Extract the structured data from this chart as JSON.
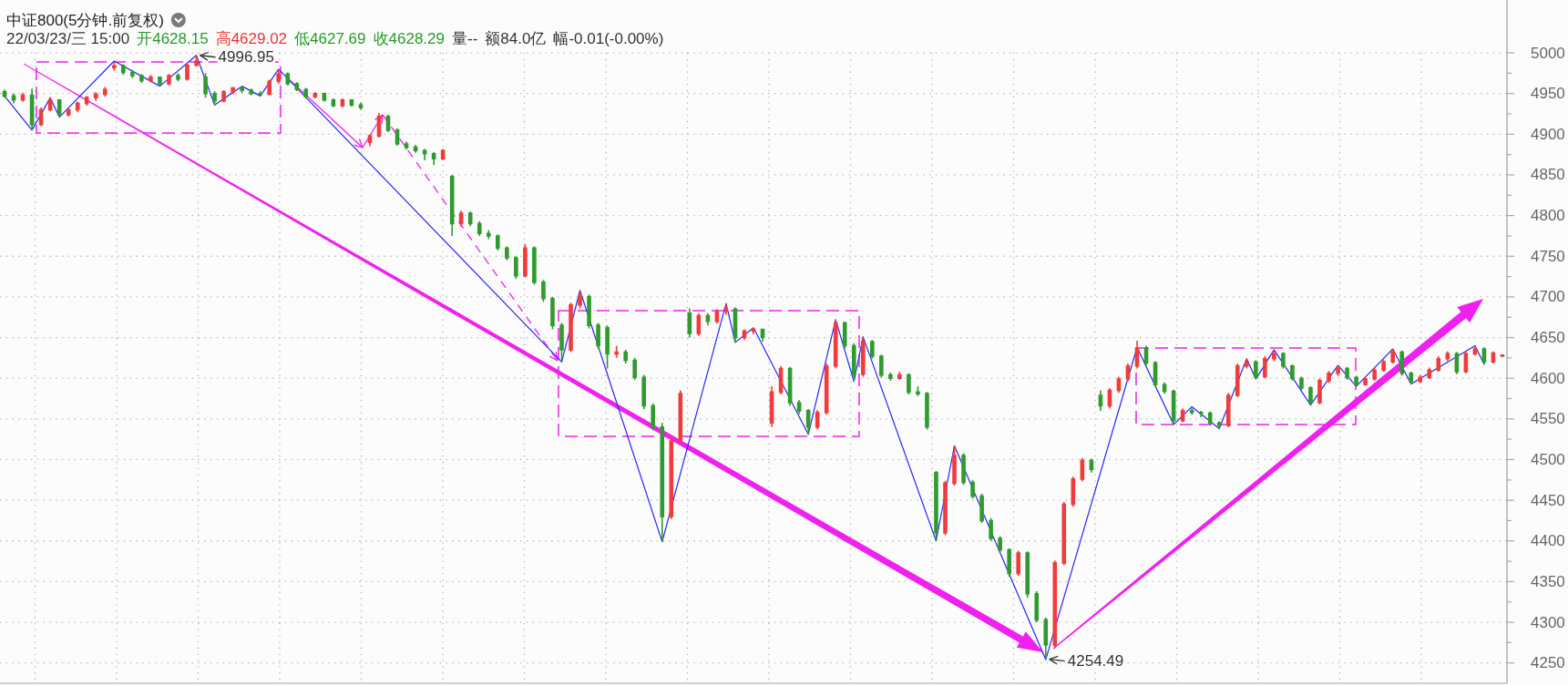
{
  "chart_data": {
    "type": "candlestick",
    "title": "中证800(5分钟.前复权)",
    "annotations": [
      "22/03/23/三 15:00",
      "开4628.15",
      "高4629.02",
      "低4627.69",
      "收4628.29",
      "量--",
      "额84.0亿",
      "幅-0.01(-0.00%)",
      "4996.95",
      "4254.49"
    ],
    "categories": [
      null,
      null,
      null,
      null,
      null,
      null,
      null,
      null,
      null,
      null,
      null,
      null,
      null,
      null,
      null,
      null,
      null,
      null,
      null,
      null,
      null,
      null,
      null,
      null,
      null,
      null,
      null,
      null,
      null,
      null,
      null,
      null,
      null,
      null,
      null,
      null,
      null,
      null,
      null,
      null,
      null,
      null,
      null,
      null,
      null,
      null,
      null,
      null,
      null,
      null,
      null,
      null,
      null,
      null,
      null,
      null,
      null,
      null,
      null,
      null,
      null,
      null,
      null,
      null,
      null,
      null,
      null,
      null,
      null,
      null,
      null,
      null,
      null,
      null,
      null,
      null,
      null,
      null,
      null,
      null,
      null,
      null,
      null,
      null,
      null,
      null,
      null,
      null,
      null,
      null,
      null,
      null,
      null,
      null,
      null,
      null,
      null,
      null,
      null,
      null,
      null,
      null,
      null,
      null,
      null,
      null,
      null,
      null,
      null,
      null,
      null,
      null,
      null,
      null,
      null,
      null,
      null,
      null,
      null,
      null,
      null,
      null,
      null,
      null,
      null,
      null,
      null,
      null,
      null,
      null,
      null,
      null,
      null,
      null,
      null,
      null,
      null,
      null,
      null,
      null,
      null,
      null,
      null,
      null,
      null,
      null,
      null,
      null,
      null,
      null,
      null,
      null,
      null,
      null,
      null,
      null,
      null,
      null,
      null,
      null,
      null,
      null,
      null,
      null,
      null
    ],
    "ohlc": [
      [
        4952,
        4955,
        4945,
        4947
      ],
      [
        4947,
        4950,
        4938,
        4942
      ],
      [
        4942,
        4951,
        4940,
        4948
      ],
      [
        4948,
        4956,
        4905,
        4912
      ],
      [
        4912,
        4933,
        4910,
        4930
      ],
      [
        4930,
        4945,
        4928,
        4942
      ],
      [
        4942,
        4943,
        4921,
        4924
      ],
      [
        4924,
        4932,
        4922,
        4930
      ],
      [
        4930,
        4940,
        4927,
        4938
      ],
      [
        4938,
        4947,
        4935,
        4945
      ],
      [
        4945,
        4952,
        4941,
        4949
      ],
      [
        4949,
        4958,
        4946,
        4955
      ],
      [
        4982,
        4990,
        4978,
        4984
      ],
      [
        4984,
        4986,
        4973,
        4976
      ],
      [
        4976,
        4979,
        4969,
        4972
      ],
      [
        4972,
        4974,
        4963,
        4966
      ],
      [
        4966,
        4973,
        4964,
        4970
      ],
      [
        4970,
        4971,
        4959,
        4962
      ],
      [
        4962,
        4974,
        4960,
        4972
      ],
      [
        4972,
        4975,
        4965,
        4968
      ],
      [
        4968,
        4987,
        4966,
        4985
      ],
      [
        4985,
        4996.95,
        4983,
        4990
      ],
      [
        4970,
        4975,
        4945,
        4950
      ],
      [
        4950,
        4953,
        4936,
        4941
      ],
      [
        4941,
        4954,
        4939,
        4952
      ],
      [
        4952,
        4958,
        4949,
        4957
      ],
      [
        4957,
        4959,
        4951,
        4954
      ],
      [
        4954,
        4956,
        4948,
        4950
      ],
      [
        4950,
        4953,
        4947,
        4949
      ],
      [
        4949,
        4967,
        4948,
        4965
      ],
      [
        4965,
        4980,
        4962,
        4974
      ],
      [
        4974,
        4976,
        4960,
        4962
      ],
      [
        4962,
        4964,
        4953,
        4955
      ],
      [
        4955,
        4957,
        4944,
        4946
      ],
      [
        4946,
        4952,
        4944,
        4950
      ],
      [
        4950,
        4951,
        4940,
        4942
      ],
      [
        4942,
        4944,
        4933,
        4935
      ],
      [
        4935,
        4944,
        4933,
        4942
      ],
      [
        4942,
        4943,
        4934,
        4936
      ],
      [
        4936,
        4939,
        4930,
        4933
      ],
      [
        4890,
        4900,
        4885,
        4898
      ],
      [
        4898,
        4926,
        4896,
        4922
      ],
      [
        4922,
        4924,
        4903,
        4905
      ],
      [
        4905,
        4907,
        4886,
        4888
      ],
      [
        4888,
        4891,
        4881,
        4884
      ],
      [
        4884,
        4887,
        4877,
        4880
      ],
      [
        4880,
        4882,
        4868,
        4876
      ],
      [
        4876,
        4878,
        4862,
        4870
      ],
      [
        4870,
        4882,
        4868,
        4880
      ],
      [
        4848,
        4850,
        4775,
        4790
      ],
      [
        4790,
        4806,
        4786,
        4803
      ],
      [
        4803,
        4805,
        4787,
        4790
      ],
      [
        4790,
        4793,
        4775,
        4778
      ],
      [
        4778,
        4782,
        4771,
        4775
      ],
      [
        4775,
        4777,
        4757,
        4760
      ],
      [
        4760,
        4762,
        4745,
        4748
      ],
      [
        4748,
        4750,
        4722,
        4726
      ],
      [
        4726,
        4765,
        4724,
        4760
      ],
      [
        4760,
        4762,
        4715,
        4718
      ],
      [
        4718,
        4721,
        4694,
        4698
      ],
      [
        4698,
        4700,
        4660,
        4665
      ],
      [
        4665,
        4668,
        4620,
        4635
      ],
      [
        4635,
        4693,
        4632,
        4690
      ],
      [
        4690,
        4708,
        4686,
        4700
      ],
      [
        4700,
        4703,
        4661,
        4665
      ],
      [
        4665,
        4668,
        4636,
        4640
      ],
      [
        4662,
        4665,
        4612,
        4630
      ],
      [
        4630,
        4640,
        4625,
        4632
      ],
      [
        4632,
        4635,
        4618,
        4622
      ],
      [
        4622,
        4625,
        4598,
        4601
      ],
      [
        4601,
        4604,
        4562,
        4566
      ],
      [
        4566,
        4569,
        4536,
        4540
      ],
      [
        4540,
        4545,
        4399,
        4430
      ],
      [
        4430,
        4528,
        4427,
        4523
      ],
      [
        4523,
        4585,
        4520,
        4581
      ],
      [
        4680,
        4686,
        4650,
        4655
      ],
      [
        4655,
        4680,
        4652,
        4677
      ],
      [
        4677,
        4680,
        4665,
        4670
      ],
      [
        4670,
        4685,
        4667,
        4682
      ],
      [
        4682,
        4692,
        4678,
        4685
      ],
      [
        4685,
        4687,
        4644,
        4650
      ],
      [
        4650,
        4660,
        4647,
        4658
      ],
      [
        4658,
        4662,
        4654,
        4660
      ],
      [
        4660,
        4661,
        4645,
        4650
      ],
      [
        4545,
        4590,
        4540,
        4583
      ],
      [
        4583,
        4615,
        4580,
        4612
      ],
      [
        4612,
        4614,
        4566,
        4570
      ],
      [
        4570,
        4573,
        4556,
        4560
      ],
      [
        4560,
        4562,
        4531,
        4540
      ],
      [
        4540,
        4561,
        4537,
        4558
      ],
      [
        4558,
        4618,
        4555,
        4615
      ],
      [
        4615,
        4672,
        4612,
        4668
      ],
      [
        4668,
        4670,
        4637,
        4640
      ],
      [
        4640,
        4643,
        4596,
        4605
      ],
      [
        4605,
        4651,
        4602,
        4645
      ],
      [
        4645,
        4647,
        4624,
        4627
      ],
      [
        4627,
        4629,
        4601,
        4604
      ],
      [
        4604,
        4607,
        4597,
        4600
      ],
      [
        4600,
        4608,
        4598,
        4604
      ],
      [
        4604,
        4606,
        4580,
        4583
      ],
      [
        4583,
        4590,
        4578,
        4581
      ],
      [
        4581,
        4583,
        4537,
        4540
      ],
      [
        4484,
        4486,
        4400,
        4410
      ],
      [
        4410,
        4474,
        4407,
        4471
      ],
      [
        4471,
        4517,
        4468,
        4505
      ],
      [
        4505,
        4508,
        4469,
        4472
      ],
      [
        4472,
        4475,
        4452,
        4455
      ],
      [
        4455,
        4458,
        4422,
        4425
      ],
      [
        4425,
        4428,
        4400,
        4403
      ],
      [
        4403,
        4406,
        4386,
        4389
      ],
      [
        4389,
        4391,
        4356,
        4360
      ],
      [
        4360,
        4388,
        4357,
        4385
      ],
      [
        4385,
        4387,
        4330,
        4335
      ],
      [
        4335,
        4338,
        4300,
        4303
      ],
      [
        4303,
        4306,
        4254.49,
        4272
      ],
      [
        4272,
        4376,
        4268,
        4373
      ],
      [
        4373,
        4448,
        4370,
        4445
      ],
      [
        4445,
        4479,
        4442,
        4476
      ],
      [
        4476,
        4502,
        4473,
        4499
      ],
      [
        4499,
        4501,
        4484,
        4488
      ],
      [
        4579,
        4585,
        4560,
        4566
      ],
      [
        4566,
        4588,
        4563,
        4585
      ],
      [
        4585,
        4602,
        4582,
        4599
      ],
      [
        4599,
        4618,
        4596,
        4615
      ],
      [
        4615,
        4646,
        4612,
        4637
      ],
      [
        4637,
        4640,
        4616,
        4619
      ],
      [
        4619,
        4621,
        4589,
        4592
      ],
      [
        4592,
        4595,
        4581,
        4584
      ],
      [
        4584,
        4586,
        4543,
        4548
      ],
      [
        4548,
        4563,
        4546,
        4560
      ],
      [
        4560,
        4565,
        4555,
        4558
      ],
      [
        4558,
        4560,
        4552,
        4557
      ],
      [
        4557,
        4559,
        4542,
        4545
      ],
      [
        4545,
        4547,
        4538,
        4542
      ],
      [
        4542,
        4582,
        4540,
        4579
      ],
      [
        4579,
        4618,
        4577,
        4615
      ],
      [
        4615,
        4624,
        4612,
        4620
      ],
      [
        4620,
        4622,
        4599,
        4602
      ],
      [
        4602,
        4627,
        4600,
        4624
      ],
      [
        4624,
        4635,
        4621,
        4630
      ],
      [
        4630,
        4632,
        4612,
        4615
      ],
      [
        4615,
        4617,
        4597,
        4600
      ],
      [
        4600,
        4602,
        4585,
        4588
      ],
      [
        4588,
        4590,
        4567,
        4570
      ],
      [
        4570,
        4600,
        4568,
        4597
      ],
      [
        4597,
        4609,
        4594,
        4606
      ],
      [
        4606,
        4616,
        4603,
        4612
      ],
      [
        4612,
        4614,
        4598,
        4601
      ],
      [
        4601,
        4603,
        4590,
        4592
      ],
      [
        4592,
        4602,
        4591,
        4599
      ],
      [
        4599,
        4613,
        4597,
        4610
      ],
      [
        4610,
        4623,
        4608,
        4620
      ],
      [
        4620,
        4636,
        4618,
        4632
      ],
      [
        4632,
        4634,
        4603,
        4606
      ],
      [
        4606,
        4608,
        4593,
        4596
      ],
      [
        4596,
        4604,
        4594,
        4601
      ],
      [
        4601,
        4613,
        4599,
        4610
      ],
      [
        4610,
        4627,
        4608,
        4624
      ],
      [
        4624,
        4633,
        4621,
        4630
      ],
      [
        4630,
        4632,
        4605,
        4608
      ],
      [
        4608,
        4633,
        4606,
        4630
      ],
      [
        4630,
        4640,
        4628,
        4636
      ],
      [
        4636,
        4638,
        4617,
        4620
      ],
      [
        4620,
        4633,
        4618,
        4631
      ],
      [
        4628.15,
        4629.02,
        4627.69,
        4628.29
      ]
    ],
    "series": [
      {
        "type": "line",
        "color": "#2626ff",
        "values": [
          4947,
          null,
          null,
          4905,
          null,
          4945,
          4921,
          null,
          null,
          null,
          null,
          null,
          4990,
          null,
          null,
          null,
          null,
          4959,
          null,
          null,
          null,
          4997,
          null,
          4936,
          null,
          null,
          4959,
          null,
          4947,
          null,
          4980,
          null,
          null,
          null,
          null,
          null,
          null,
          null,
          null,
          null,
          null,
          null,
          null,
          null,
          null,
          null,
          null,
          null,
          null,
          null,
          null,
          null,
          null,
          null,
          null,
          null,
          null,
          null,
          null,
          null,
          null,
          4620,
          null,
          4708,
          null,
          null,
          null,
          null,
          null,
          null,
          null,
          null,
          4399,
          null,
          null,
          null,
          null,
          null,
          null,
          4692,
          4644,
          null,
          4662,
          null,
          null,
          null,
          null,
          null,
          4531,
          null,
          null,
          4672,
          null,
          4596,
          4651,
          null,
          null,
          null,
          null,
          null,
          null,
          null,
          4400,
          null,
          4517,
          null,
          null,
          null,
          null,
          null,
          null,
          null,
          null,
          null,
          4254,
          null,
          null,
          null,
          null,
          null,
          null,
          null,
          null,
          null,
          4638,
          null,
          null,
          null,
          4543,
          null,
          4565,
          null,
          null,
          4538,
          null,
          null,
          4624,
          4599,
          null,
          4635,
          null,
          null,
          null,
          4567,
          null,
          null,
          4616,
          null,
          4590,
          null,
          null,
          null,
          4636,
          null,
          4593,
          null,
          null,
          null,
          null,
          null,
          null,
          4640,
          4617,
          null,
          null
        ]
      }
    ],
    "ylim": [
      4225,
      5065
    ],
    "yticks": [
      4250,
      {
        "value": 4275,
        "label": null
      },
      4300,
      {
        "value": 4325,
        "label": null
      },
      4350,
      {
        "value": 4375,
        "label": null
      },
      4400,
      {
        "value": 4425,
        "label": null
      },
      4450,
      {
        "value": 4475,
        "label": null
      },
      4500,
      {
        "value": 4525,
        "label": null
      },
      4550,
      {
        "value": 4575,
        "label": null
      },
      4600,
      {
        "value": 4625,
        "label": null
      },
      4650,
      {
        "value": 4675,
        "label": null
      },
      4700,
      {
        "value": 4725,
        "label": null
      },
      4750,
      {
        "value": 4775,
        "label": null
      },
      4800,
      {
        "value": 4825,
        "label": null
      },
      4850,
      {
        "value": 4875,
        "label": null
      },
      4900,
      {
        "value": 4925,
        "label": null
      },
      4950,
      {
        "value": 4975,
        "label": null
      },
      5000
    ],
    "grid": true,
    "tick_labels": "y"
  }
}
